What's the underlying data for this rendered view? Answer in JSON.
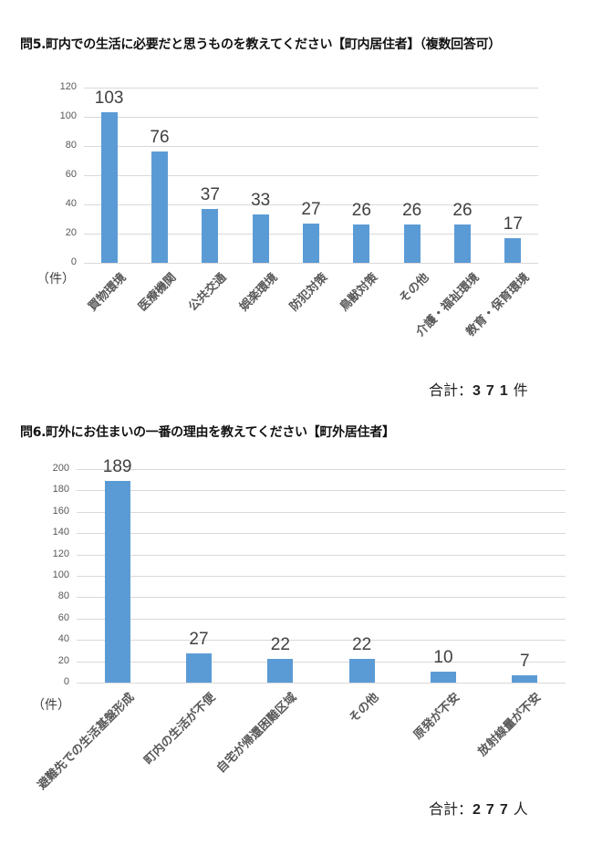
{
  "chart_data": [
    {
      "type": "bar",
      "title": "問5.町内での生活に必要だと思うものを教えてください【町内居住者】（複数回答可）",
      "categories": [
        "買物環境",
        "医療機関",
        "公共交通",
        "娯楽環境",
        "防犯対策",
        "鳥獣対策",
        "その他",
        "介護・福祉環境",
        "教育・保育環境"
      ],
      "values": [
        103,
        76,
        37,
        33,
        27,
        26,
        26,
        26,
        17
      ],
      "ylabel": "（件）",
      "ylim": [
        0,
        120
      ],
      "yticks": [
        0,
        20,
        40,
        60,
        80,
        100,
        120
      ],
      "grid": true,
      "color": "#5b9bd5",
      "total_label": "合計：",
      "total_value": "371",
      "total_unit": "件"
    },
    {
      "type": "bar",
      "title": "問6.町外にお住まいの一番の理由を教えてください【町外居住者】",
      "categories": [
        "避難先での生活基盤形成",
        "町内の生活が不便",
        "自宅が帰還困難区域",
        "その他",
        "原発が不安",
        "放射線量が不安"
      ],
      "values": [
        189,
        27,
        22,
        22,
        10,
        7
      ],
      "ylabel": "（件）",
      "ylim": [
        0,
        200
      ],
      "yticks": [
        0,
        20,
        40,
        60,
        80,
        100,
        120,
        140,
        160,
        180,
        200
      ],
      "grid": true,
      "color": "#5b9bd5",
      "total_label": "合計：",
      "total_value": "277",
      "total_unit": "人"
    }
  ]
}
